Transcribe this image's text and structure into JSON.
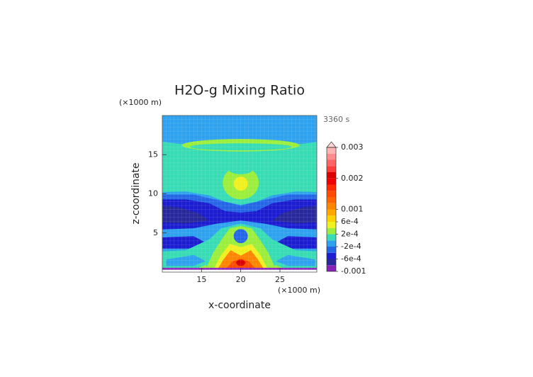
{
  "chart_data": {
    "type": "contour",
    "title": "H2O-g Mixing Ratio",
    "time_label": "3360 s",
    "x_label": "x-coordinate",
    "y_label": "z-coordinate",
    "x_unit": "(×1000 m)",
    "y_unit": "(×1000 m)",
    "xlim": [
      10,
      29.7
    ],
    "xticks": [
      15,
      20,
      25
    ],
    "ylim": [
      0,
      20
    ],
    "yticks": [
      5,
      10,
      15
    ],
    "colorbar": {
      "levels": [
        -0.001,
        -0.0008,
        -0.0006,
        -0.0004,
        -0.0002,
        0,
        0.0002,
        0.0004,
        0.0006,
        0.0008,
        0.001,
        0.0012,
        0.0014,
        0.0016,
        0.0018,
        0.002,
        0.0022,
        0.0024,
        0.0026,
        0.0028,
        0.003
      ],
      "colors": [
        "#8a20b8",
        "#28289c",
        "#1c1cd0",
        "#2466e6",
        "#2ea2ee",
        "#38dcb4",
        "#9cee3c",
        "#f0f020",
        "#ffd200",
        "#ffa800",
        "#ff8400",
        "#ff6400",
        "#ff4a00",
        "#ff2a00",
        "#f00000",
        "#d80000",
        "#ff3c3c",
        "#ff6464",
        "#ff8c8c",
        "#ffb4b4"
      ],
      "extend_color": "#ffd4d4",
      "ticks": [
        0.003,
        0.002,
        0.001,
        {
          "value": 0.0006,
          "label": "6e-4"
        },
        {
          "value": 0.0002,
          "label": "2e-4"
        },
        {
          "value": -0.0002,
          "label": "-2e-4"
        },
        {
          "value": -0.0006,
          "label": "-6e-4"
        },
        -0.001
      ]
    }
  }
}
